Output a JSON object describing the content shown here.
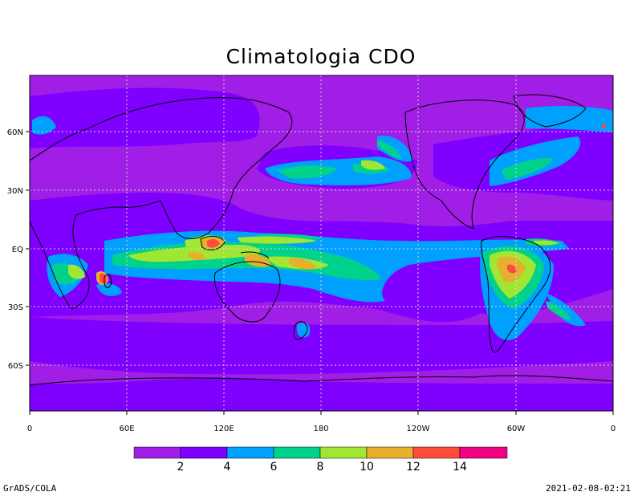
{
  "title": "Climatologia CDO",
  "colors": {
    "background_field": "#a01ee6",
    "grid": "#d8d8d8",
    "levels": [
      "#a01ee6",
      "#7f00ff",
      "#00a0ff",
      "#00d28c",
      "#a0e632",
      "#e6af2d",
      "#ff4b3c",
      "#f00082"
    ]
  },
  "colorbar": {
    "labels": [
      "2",
      "4",
      "6",
      "8",
      "10",
      "12",
      "14"
    ]
  },
  "x_ticks": [
    "0",
    "60E",
    "120E",
    "180",
    "120W",
    "60W",
    "0"
  ],
  "y_ticks": [
    "60N",
    "30N",
    "EQ",
    "30S",
    "60S"
  ],
  "footer": {
    "left": "GrADS/COLA",
    "right": "2021-02-08-02:21"
  }
}
